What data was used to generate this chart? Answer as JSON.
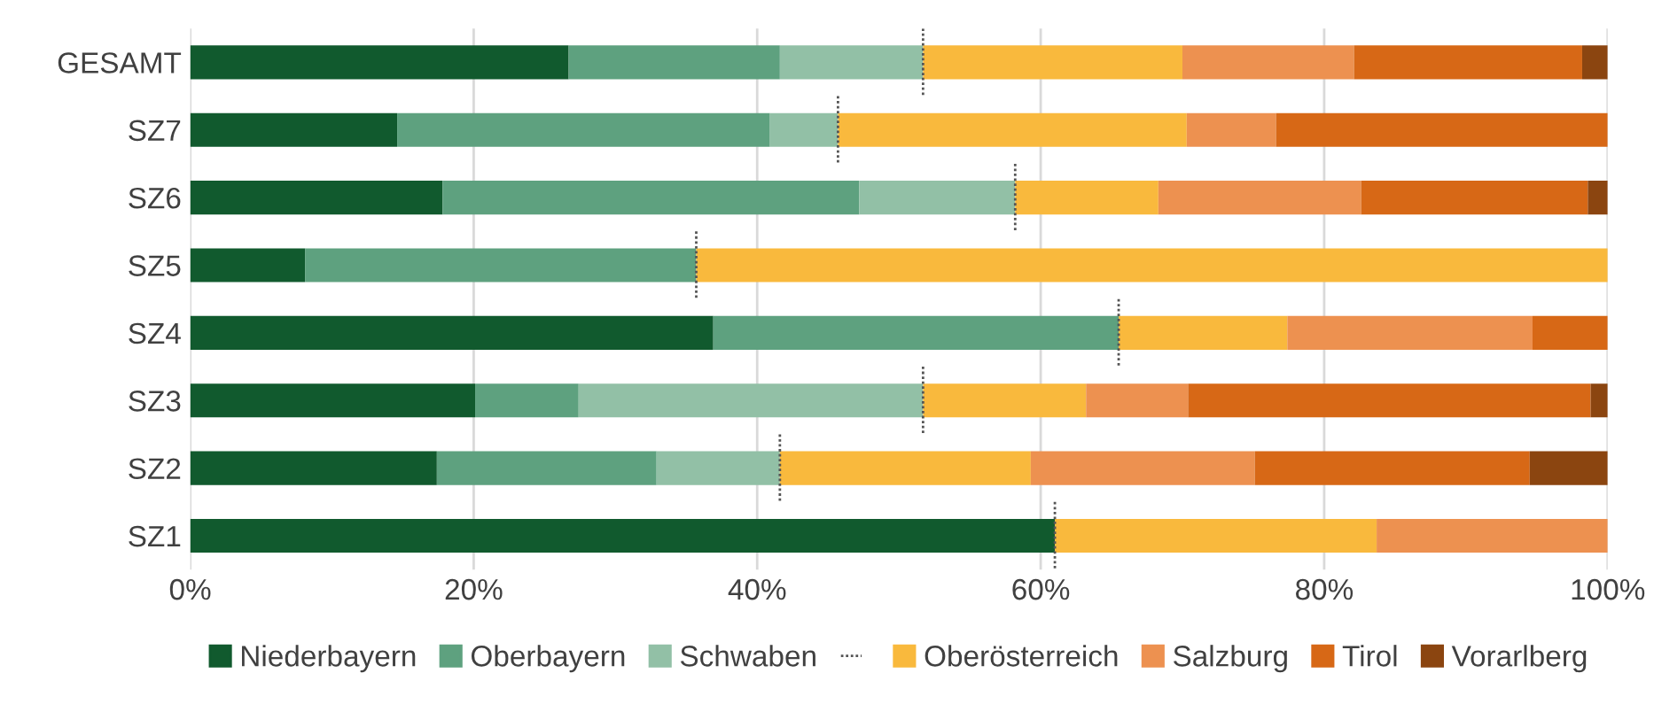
{
  "chart_data": {
    "type": "bar",
    "orientation": "horizontal",
    "stacked": true,
    "categories": [
      "GESAMT",
      "SZ7",
      "SZ6",
      "SZ5",
      "SZ4",
      "SZ3",
      "SZ2",
      "SZ1"
    ],
    "series": [
      {
        "name": "Niederbayern",
        "color": "#115a2e",
        "values": [
          26.7,
          14.6,
          17.8,
          8.1,
          36.9,
          20.1,
          17.4,
          61.0
        ]
      },
      {
        "name": "Oberbayern",
        "color": "#5ea17f",
        "values": [
          14.9,
          26.3,
          29.4,
          27.6,
          28.6,
          7.3,
          15.5,
          0
        ]
      },
      {
        "name": "Schwaben",
        "color": "#92c0a6",
        "values": [
          10.1,
          4.8,
          11.0,
          0,
          0,
          24.3,
          8.7,
          0
        ]
      },
      {
        "name": "Oberösterreich",
        "color": "#f9b93d",
        "values": [
          18.3,
          24.6,
          10.1,
          64.3,
          11.9,
          11.5,
          17.7,
          22.7
        ]
      },
      {
        "name": "Salzburg",
        "color": "#ed9150",
        "values": [
          12.1,
          6.3,
          14.3,
          0,
          17.3,
          7.2,
          15.8,
          16.3
        ]
      },
      {
        "name": "Tirol",
        "color": "#d76816",
        "values": [
          16.1,
          23.4,
          16.0,
          0,
          5.3,
          28.4,
          19.4,
          0
        ]
      },
      {
        "name": "Vorarlberg",
        "color": "#8b4510",
        "values": [
          1.8,
          0,
          1.4,
          0,
          0,
          1.2,
          5.5,
          0
        ]
      }
    ],
    "xlim": [
      0,
      100
    ],
    "xticks": [
      {
        "value": 0,
        "label": "0%"
      },
      {
        "value": 20,
        "label": "20%"
      },
      {
        "value": 40,
        "label": "40%"
      },
      {
        "value": 60,
        "label": "60%"
      },
      {
        "value": 80,
        "label": "80%"
      },
      {
        "value": 100,
        "label": "100%"
      }
    ],
    "grid": "x",
    "legend": "bottom"
  }
}
